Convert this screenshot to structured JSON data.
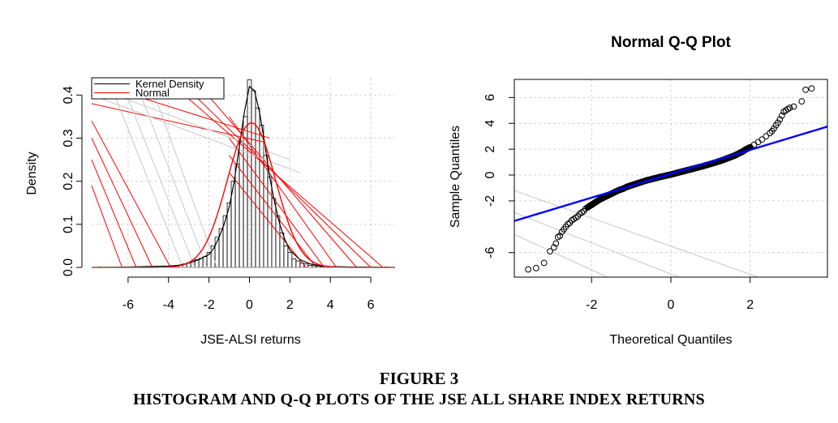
{
  "chart_data": [
    {
      "type": "histogram",
      "title": "",
      "xlabel": "JSE-ALSI returns",
      "ylabel": "Density",
      "xlim": [
        -7.8,
        7.2
      ],
      "ylim": [
        0,
        0.44
      ],
      "xticks": [
        -6,
        -4,
        -2,
        0,
        2,
        4,
        6
      ],
      "xtick_labels": [
        "-6",
        "-4",
        "-2",
        "0",
        "2",
        "4",
        "6"
      ],
      "yticks": [
        0.0,
        0.1,
        0.2,
        0.3,
        0.4
      ],
      "ytick_labels": [
        "0.0",
        "0.1",
        "0.2",
        "0.3",
        "0.4"
      ],
      "grid": true,
      "legend": {
        "position": "top-left",
        "entries": [
          {
            "label": "Kernel Density",
            "color": "#000000"
          },
          {
            "label": "Normal",
            "color": "#ff0000"
          }
        ]
      },
      "bins": [
        {
          "x0": -7.5,
          "x1": -7.3,
          "density": 0.001
        },
        {
          "x0": -6.0,
          "x1": -5.8,
          "density": 0.001
        },
        {
          "x0": -5.1,
          "x1": -4.9,
          "density": 0.001
        },
        {
          "x0": -4.7,
          "x1": -4.5,
          "density": 0.002
        },
        {
          "x0": -4.3,
          "x1": -4.1,
          "density": 0.002
        },
        {
          "x0": -4.1,
          "x1": -3.9,
          "density": 0.003
        },
        {
          "x0": -3.9,
          "x1": -3.7,
          "density": 0.003
        },
        {
          "x0": -3.7,
          "x1": -3.5,
          "density": 0.004
        },
        {
          "x0": -3.5,
          "x1": -3.3,
          "density": 0.005
        },
        {
          "x0": -3.3,
          "x1": -3.1,
          "density": 0.008
        },
        {
          "x0": -3.1,
          "x1": -2.9,
          "density": 0.011
        },
        {
          "x0": -2.9,
          "x1": -2.7,
          "density": 0.015
        },
        {
          "x0": -2.7,
          "x1": -2.5,
          "density": 0.018
        },
        {
          "x0": -2.5,
          "x1": -2.3,
          "density": 0.021
        },
        {
          "x0": -2.3,
          "x1": -2.1,
          "density": 0.025
        },
        {
          "x0": -2.1,
          "x1": -1.9,
          "density": 0.035
        },
        {
          "x0": -1.9,
          "x1": -1.7,
          "density": 0.05
        },
        {
          "x0": -1.7,
          "x1": -1.5,
          "density": 0.07
        },
        {
          "x0": -1.5,
          "x1": -1.3,
          "density": 0.09
        },
        {
          "x0": -1.3,
          "x1": -1.1,
          "density": 0.12
        },
        {
          "x0": -1.1,
          "x1": -0.9,
          "density": 0.15
        },
        {
          "x0": -0.9,
          "x1": -0.7,
          "density": 0.2
        },
        {
          "x0": -0.7,
          "x1": -0.5,
          "density": 0.24
        },
        {
          "x0": -0.5,
          "x1": -0.3,
          "density": 0.29
        },
        {
          "x0": -0.3,
          "x1": -0.1,
          "density": 0.35
        },
        {
          "x0": -0.1,
          "x1": 0.1,
          "density": 0.435
        },
        {
          "x0": 0.1,
          "x1": 0.3,
          "density": 0.41
        },
        {
          "x0": 0.3,
          "x1": 0.5,
          "density": 0.37
        },
        {
          "x0": 0.5,
          "x1": 0.7,
          "density": 0.33
        },
        {
          "x0": 0.7,
          "x1": 0.9,
          "density": 0.26
        },
        {
          "x0": 0.9,
          "x1": 1.1,
          "density": 0.21
        },
        {
          "x0": 1.1,
          "x1": 1.3,
          "density": 0.16
        },
        {
          "x0": 1.3,
          "x1": 1.5,
          "density": 0.12
        },
        {
          "x0": 1.5,
          "x1": 1.7,
          "density": 0.08
        },
        {
          "x0": 1.7,
          "x1": 1.9,
          "density": 0.05
        },
        {
          "x0": 1.9,
          "x1": 2.1,
          "density": 0.035
        },
        {
          "x0": 2.1,
          "x1": 2.3,
          "density": 0.02
        },
        {
          "x0": 2.3,
          "x1": 2.5,
          "density": 0.015
        },
        {
          "x0": 2.5,
          "x1": 2.7,
          "density": 0.01
        },
        {
          "x0": 2.7,
          "x1": 2.9,
          "density": 0.008
        },
        {
          "x0": 2.9,
          "x1": 3.1,
          "density": 0.005
        },
        {
          "x0": 3.1,
          "x1": 3.3,
          "density": 0.004
        },
        {
          "x0": 3.3,
          "x1": 3.5,
          "density": 0.003
        },
        {
          "x0": 3.5,
          "x1": 3.7,
          "density": 0.002
        },
        {
          "x0": 4.7,
          "x1": 4.9,
          "density": 0.001
        },
        {
          "x0": 5.9,
          "x1": 6.1,
          "density": 0.001
        },
        {
          "x0": 6.7,
          "x1": 6.9,
          "density": 0.001
        }
      ],
      "kernel_density": {
        "x": [
          -7.8,
          -6,
          -5,
          -4,
          -3.5,
          -3,
          -2.5,
          -2,
          -1.75,
          -1.5,
          -1.25,
          -1,
          -0.75,
          -0.5,
          -0.25,
          0,
          0.25,
          0.5,
          0.75,
          1,
          1.25,
          1.5,
          1.75,
          2,
          2.5,
          3,
          3.5,
          4,
          5,
          6,
          7.2
        ],
        "y": [
          0,
          0.001,
          0.002,
          0.003,
          0.005,
          0.01,
          0.018,
          0.03,
          0.045,
          0.07,
          0.1,
          0.14,
          0.2,
          0.28,
          0.36,
          0.42,
          0.41,
          0.36,
          0.29,
          0.21,
          0.15,
          0.1,
          0.065,
          0.04,
          0.018,
          0.008,
          0.004,
          0.002,
          0.001,
          0.001,
          0
        ]
      },
      "normal": {
        "mean": 0.1,
        "sd": 1.19
      },
      "extra_lines": [
        {
          "color": "#ff0000",
          "x1": -7.8,
          "y1": 0.43,
          "x2": 1.0,
          "y2": 0.3
        },
        {
          "color": "#ff0000",
          "x1": -7.8,
          "y1": 0.38,
          "x2": 0.8,
          "y2": 0.29
        },
        {
          "color": "#ff0000",
          "x1": -7.8,
          "y1": 0.34,
          "x2": -3.9,
          "y2": 0.0
        },
        {
          "color": "#ff0000",
          "x1": -7.8,
          "y1": 0.3,
          "x2": -4.8,
          "y2": 0.0
        },
        {
          "color": "#ff0000",
          "x1": -7.8,
          "y1": 0.25,
          "x2": -5.6,
          "y2": 0.0
        },
        {
          "color": "#ff0000",
          "x1": -7.8,
          "y1": 0.19,
          "x2": -6.3,
          "y2": 0.0
        },
        {
          "color": "#ff0000",
          "x1": -4.2,
          "y1": 0.44,
          "x2": 6.6,
          "y2": 0.0
        },
        {
          "color": "#ff0000",
          "x1": -3.6,
          "y1": 0.44,
          "x2": 6.0,
          "y2": 0.0
        },
        {
          "color": "#ff0000",
          "x1": -2.8,
          "y1": 0.44,
          "x2": 5.3,
          "y2": 0.0
        },
        {
          "color": "#ff0000",
          "x1": -1.0,
          "y1": 0.35,
          "x2": 4.3,
          "y2": 0.0
        },
        {
          "color": "#ff0000",
          "x1": -1.0,
          "y1": 0.3,
          "x2": 3.7,
          "y2": 0.0
        },
        {
          "color": "#ff0000",
          "x1": -1.0,
          "y1": 0.26,
          "x2": 3.3,
          "y2": 0.0
        },
        {
          "color": "#ff0000",
          "x1": -1.0,
          "y1": 0.22,
          "x2": 2.8,
          "y2": 0.0
        },
        {
          "color": "#c8c8c8",
          "x1": -7.8,
          "y1": 0.42,
          "x2": 2.0,
          "y2": 0.25
        },
        {
          "color": "#c8c8c8",
          "x1": -7.8,
          "y1": 0.4,
          "x2": 2.5,
          "y2": 0.22
        },
        {
          "color": "#c8c8c8",
          "x1": -7.0,
          "y1": 0.44,
          "x2": -3.3,
          "y2": 0.0
        },
        {
          "color": "#c8c8c8",
          "x1": -6.4,
          "y1": 0.44,
          "x2": -2.7,
          "y2": 0.0
        },
        {
          "color": "#c8c8c8",
          "x1": -5.7,
          "y1": 0.44,
          "x2": -2.1,
          "y2": 0.0
        },
        {
          "color": "#c8c8c8",
          "x1": -5.0,
          "y1": 0.44,
          "x2": -1.6,
          "y2": 0.0
        }
      ]
    },
    {
      "type": "scatter",
      "title": "Normal Q-Q Plot",
      "xlabel": "Theoretical Quantiles",
      "ylabel": "Sample Quantiles",
      "xlim": [
        -3.95,
        3.95
      ],
      "ylim": [
        -7.9,
        7.4
      ],
      "xticks": [
        -2,
        0,
        2
      ],
      "xtick_labels": [
        "-2",
        "0",
        "2"
      ],
      "yticks": [
        -6,
        -2,
        0,
        2,
        4,
        6
      ],
      "ytick_labels": [
        "-6",
        "-2",
        "0",
        "2",
        "4",
        "6"
      ],
      "grid": true,
      "points": {
        "x": [
          -3.6,
          -3.4,
          -3.2,
          -3.05,
          -2.95,
          -2.9,
          -2.85,
          -2.8,
          -2.75,
          -2.7,
          -2.65,
          -2.6,
          -2.55,
          -2.5,
          -2.45,
          -2.4,
          -2.35,
          -2.3,
          -2.25,
          -2.2,
          -2.15,
          -2.1,
          -2.05,
          -2.0,
          -1.9,
          -1.8,
          -1.7,
          -1.6,
          -1.5,
          -1.4,
          -1.3,
          -1.2,
          -1.1,
          -1.0,
          -0.9,
          -0.8,
          -0.7,
          -0.6,
          -0.5,
          -0.4,
          -0.3,
          -0.2,
          -0.1,
          0.0,
          0.1,
          0.2,
          0.3,
          0.4,
          0.5,
          0.6,
          0.7,
          0.8,
          0.9,
          1.0,
          1.1,
          1.2,
          1.3,
          1.4,
          1.5,
          1.6,
          1.7,
          1.8,
          1.9,
          2.0,
          2.1,
          2.2,
          2.3,
          2.4,
          2.5,
          2.55,
          2.6,
          2.65,
          2.7,
          2.75,
          2.8,
          2.85,
          2.9,
          2.95,
          3.0,
          3.1,
          3.3,
          3.4,
          3.55
        ],
        "y": [
          -7.3,
          -7.2,
          -6.8,
          -5.9,
          -5.6,
          -5.3,
          -4.8,
          -4.7,
          -4.4,
          -4.2,
          -4.0,
          -3.8,
          -3.7,
          -3.5,
          -3.4,
          -3.3,
          -3.2,
          -3.0,
          -2.9,
          -2.8,
          -2.6,
          -2.5,
          -2.4,
          -2.3,
          -2.1,
          -1.9,
          -1.75,
          -1.6,
          -1.45,
          -1.3,
          -1.15,
          -1.05,
          -0.9,
          -0.8,
          -0.7,
          -0.6,
          -0.5,
          -0.4,
          -0.33,
          -0.25,
          -0.17,
          -0.1,
          -0.03,
          0.04,
          0.12,
          0.2,
          0.28,
          0.36,
          0.44,
          0.52,
          0.6,
          0.68,
          0.77,
          0.86,
          0.95,
          1.05,
          1.15,
          1.26,
          1.38,
          1.5,
          1.65,
          1.8,
          2.0,
          2.15,
          2.35,
          2.55,
          2.75,
          3.0,
          3.25,
          3.4,
          3.6,
          3.85,
          4.05,
          4.3,
          4.6,
          4.9,
          5.0,
          5.1,
          5.2,
          5.3,
          5.7,
          6.6,
          6.7
        ]
      },
      "dense_band": {
        "x0": -2.1,
        "x1": 2.05
      },
      "qq_line": {
        "color": "#0000ff",
        "x1": -3.95,
        "y1": -3.55,
        "x2": 3.95,
        "y2": 3.75
      },
      "extra_lines": [
        {
          "color": "#c8c8c8",
          "x1": -3.95,
          "y1": -1.2,
          "x2": 2.2,
          "y2": -7.9
        },
        {
          "color": "#c8c8c8",
          "x1": -3.95,
          "y1": -2.9,
          "x2": 0.2,
          "y2": -7.9
        },
        {
          "color": "#c8c8c8",
          "x1": -3.95,
          "y1": -4.6,
          "x2": -1.6,
          "y2": -7.9
        }
      ]
    }
  ],
  "caption": {
    "figure": "FIGURE 3",
    "title": "HISTOGRAM AND Q-Q PLOTS OF THE JSE ALL SHARE INDEX RETURNS"
  }
}
